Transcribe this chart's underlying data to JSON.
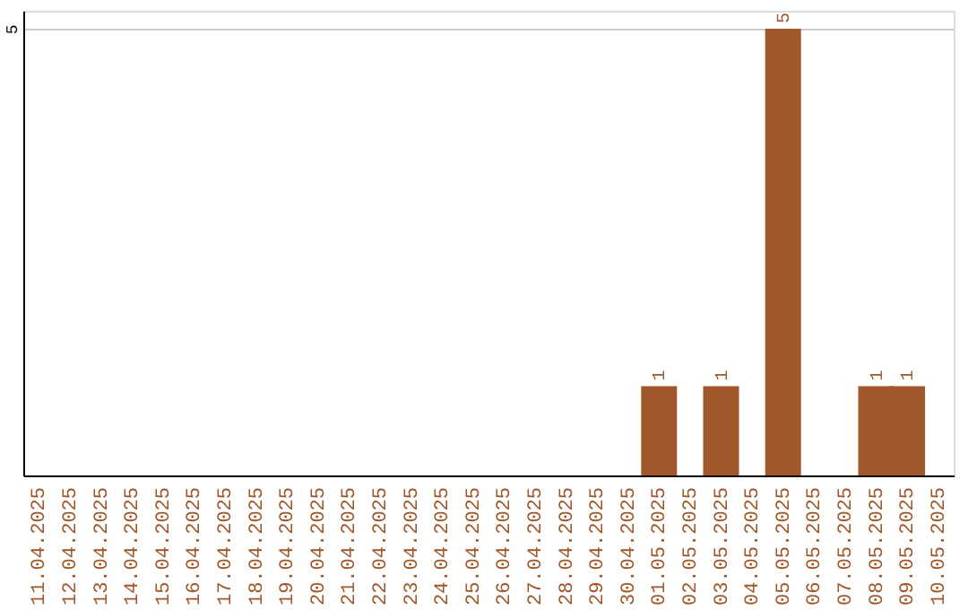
{
  "chart_data": {
    "type": "bar",
    "categories": [
      "11.04.2025",
      "12.04.2025",
      "13.04.2025",
      "14.04.2025",
      "15.04.2025",
      "16.04.2025",
      "17.04.2025",
      "18.04.2025",
      "19.04.2025",
      "20.04.2025",
      "21.04.2025",
      "22.04.2025",
      "23.04.2025",
      "24.04.2025",
      "25.04.2025",
      "26.04.2025",
      "27.04.2025",
      "28.04.2025",
      "29.04.2025",
      "30.04.2025",
      "01.05.2025",
      "02.05.2025",
      "03.05.2025",
      "04.05.2025",
      "05.05.2025",
      "06.05.2025",
      "07.05.2025",
      "08.05.2025",
      "09.05.2025",
      "10.05.2025"
    ],
    "values": [
      null,
      null,
      null,
      null,
      null,
      null,
      null,
      null,
      null,
      null,
      null,
      null,
      null,
      null,
      null,
      null,
      null,
      null,
      null,
      null,
      1,
      null,
      1,
      null,
      5,
      null,
      null,
      1,
      1,
      null
    ],
    "color": "#a0572a",
    "ylim": [
      0,
      5.2
    ],
    "yticks": [
      5
    ],
    "grid": "y",
    "data_labels": true
  }
}
